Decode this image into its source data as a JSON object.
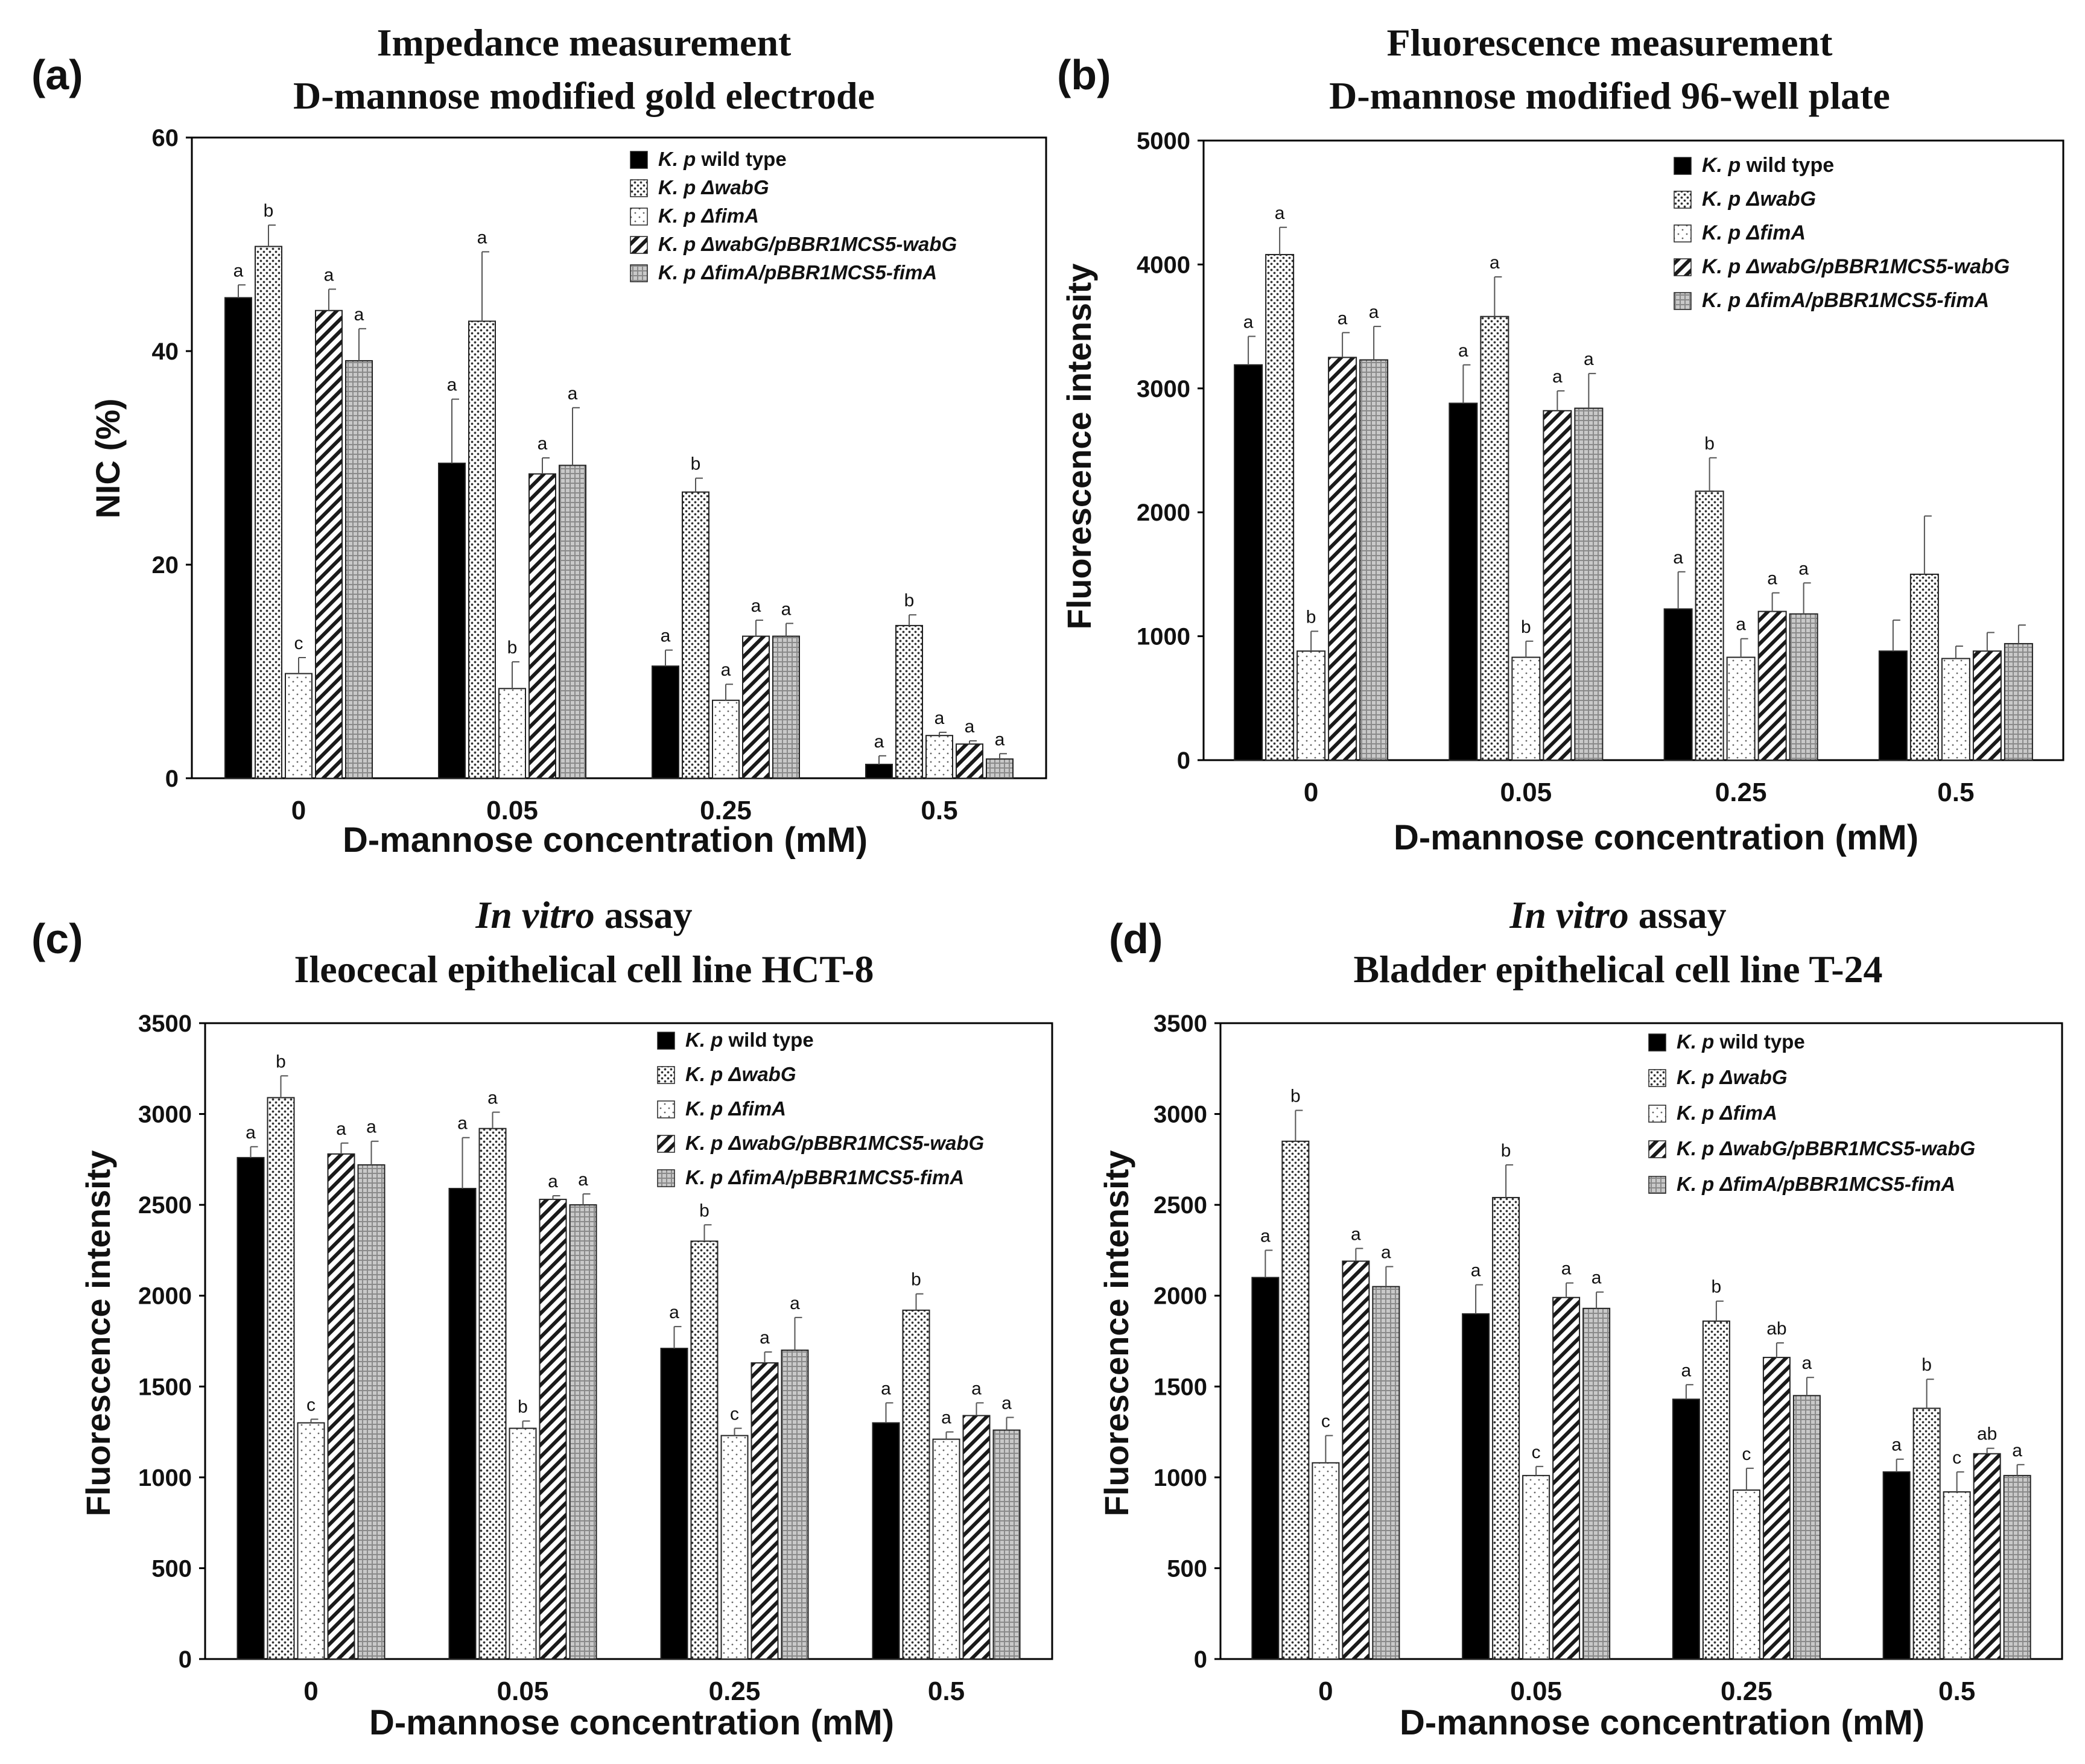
{
  "colors": {
    "wild_type": "#000000",
    "dwabG": "#bdbdbd",
    "dfimA": "#e8e8e8",
    "dwabG_comp": "#1a1a1a",
    "dfimA_comp": "#a8a8a8",
    "error_bar": "#555555"
  },
  "legend": [
    {
      "prefix": "K. p",
      "rest": " wild type",
      "pattern": "solid"
    },
    {
      "prefix": "K. p",
      "rest": " ΔwabG",
      "pattern": "dots-dense"
    },
    {
      "prefix": "K. p",
      "rest": " ΔfimA",
      "pattern": "dots-sparse"
    },
    {
      "prefix": "K. p",
      "rest": " ΔwabG/pBBR1MCS5-wabG",
      "pattern": "diagonal"
    },
    {
      "prefix": "K. p",
      "rest": " ΔfimA/pBBR1MCS5-fimA",
      "pattern": "grid"
    }
  ],
  "chart_data": [
    {
      "panel": "(a)",
      "type": "bar",
      "title_line1": "Impedance measurement",
      "title_line2": "D-mannose modified gold electrode",
      "xlabel": "D-mannose concentration (mM)",
      "ylabel": "NIC (%)",
      "categories": [
        "0",
        "0.05",
        "0.25",
        "0.5"
      ],
      "ylim": [
        0,
        60
      ],
      "yticks": [
        0,
        20,
        40,
        60
      ],
      "series": [
        {
          "name": "K. p wild type",
          "values": [
            45,
            29.5,
            10.5,
            1.3
          ],
          "errors": [
            1.2,
            6,
            1.5,
            0.8
          ],
          "letters": [
            "a",
            "a",
            "a",
            "a"
          ]
        },
        {
          "name": "K. p ΔwabG",
          "values": [
            49.8,
            42.8,
            26.8,
            14.3
          ],
          "errors": [
            2,
            6.5,
            1.3,
            1
          ],
          "letters": [
            "b",
            "a",
            "b",
            "b"
          ]
        },
        {
          "name": "K. p ΔfimA",
          "values": [
            9.8,
            8.4,
            7.3,
            4
          ],
          "errors": [
            1.5,
            2.5,
            1.5,
            0.3
          ],
          "letters": [
            "c",
            "b",
            "a",
            "a"
          ]
        },
        {
          "name": "K. p ΔwabG/pBBR1MCS5-wabG",
          "values": [
            43.8,
            28.5,
            13.3,
            3.2
          ],
          "errors": [
            2,
            1.5,
            1.5,
            0.3
          ],
          "letters": [
            "a",
            "a",
            "a",
            "a"
          ]
        },
        {
          "name": "K. p ΔfimA/pBBR1MCS5-fimA",
          "values": [
            39.1,
            29.3,
            13.3,
            1.8
          ],
          "errors": [
            3,
            5.4,
            1.2,
            0.5
          ],
          "letters": [
            "a",
            "a",
            "a",
            "a"
          ]
        }
      ]
    },
    {
      "panel": "(b)",
      "type": "bar",
      "title_line1": "Fluorescence measurement",
      "title_line2": "D-mannose modified 96-well plate",
      "xlabel": "D-mannose concentration (mM)",
      "ylabel": "Fluorescence intensity",
      "categories": [
        "0",
        "0.05",
        "0.25",
        "0.5"
      ],
      "ylim": [
        0,
        5000
      ],
      "yticks": [
        0,
        1000,
        2000,
        3000,
        4000,
        5000
      ],
      "series": [
        {
          "name": "K. p wild type",
          "values": [
            3190,
            2880,
            1220,
            880
          ],
          "errors": [
            230,
            310,
            300,
            250
          ],
          "letters": [
            "a",
            "a",
            "a",
            ""
          ]
        },
        {
          "name": "K. p ΔwabG",
          "values": [
            4080,
            3580,
            2170,
            1500
          ],
          "errors": [
            220,
            320,
            270,
            470
          ],
          "letters": [
            "a",
            "a",
            "b",
            ""
          ]
        },
        {
          "name": "K. p ΔfimA",
          "values": [
            880,
            830,
            830,
            820
          ],
          "errors": [
            160,
            130,
            150,
            100
          ],
          "letters": [
            "b",
            "b",
            "a",
            ""
          ]
        },
        {
          "name": "K. p ΔwabG/pBBR1MCS5-wabG",
          "values": [
            3250,
            2820,
            1200,
            880
          ],
          "errors": [
            200,
            160,
            150,
            150
          ],
          "letters": [
            "a",
            "a",
            "a",
            ""
          ]
        },
        {
          "name": "K. p ΔfimA/pBBR1MCS5-fimA",
          "values": [
            3230,
            2840,
            1180,
            940
          ],
          "errors": [
            270,
            280,
            250,
            150
          ],
          "letters": [
            "a",
            "a",
            "a",
            ""
          ]
        }
      ]
    },
    {
      "panel": "(c)",
      "type": "bar",
      "title_line1_italic": "In vitro",
      "title_line1_rest": " assay",
      "title_line2": "Ileocecal epithelical cell line HCT-8",
      "xlabel": "D-mannose concentration (mM)",
      "ylabel": "Fluorescence intensity",
      "categories": [
        "0",
        "0.05",
        "0.25",
        "0.5"
      ],
      "ylim": [
        0,
        3500
      ],
      "yticks": [
        0,
        500,
        1000,
        1500,
        2000,
        2500,
        3000,
        3500
      ],
      "series": [
        {
          "name": "K. p wild type",
          "values": [
            2760,
            2590,
            1710,
            1300
          ],
          "errors": [
            60,
            280,
            120,
            110
          ],
          "letters": [
            "a",
            "a",
            "a",
            "a"
          ]
        },
        {
          "name": "K. p ΔwabG",
          "values": [
            3090,
            2920,
            2300,
            1920
          ],
          "errors": [
            120,
            90,
            90,
            90
          ],
          "letters": [
            "b",
            "a",
            "b",
            "b"
          ]
        },
        {
          "name": "K. p ΔfimA",
          "values": [
            1300,
            1270,
            1230,
            1210
          ],
          "errors": [
            20,
            40,
            40,
            40
          ],
          "letters": [
            "c",
            "b",
            "c",
            "a"
          ]
        },
        {
          "name": "K. p ΔwabG/pBBR1MCS5-wabG",
          "values": [
            2780,
            2530,
            1630,
            1340
          ],
          "errors": [
            60,
            20,
            60,
            70
          ],
          "letters": [
            "a",
            "a",
            "a",
            "a"
          ]
        },
        {
          "name": "K. p ΔfimA/pBBR1MCS5-fimA",
          "values": [
            2720,
            2500,
            1700,
            1260
          ],
          "errors": [
            130,
            60,
            180,
            70
          ],
          "letters": [
            "a",
            "a",
            "a",
            "a"
          ]
        }
      ]
    },
    {
      "panel": "(d)",
      "type": "bar",
      "title_line1_italic": "In vitro",
      "title_line1_rest": " assay",
      "title_line2": "Bladder epithelical cell line T-24",
      "xlabel": "D-mannose concentration (mM)",
      "ylabel": "Fluorescence intensity",
      "categories": [
        "0",
        "0.05",
        "0.25",
        "0.5"
      ],
      "ylim": [
        0,
        3500
      ],
      "yticks": [
        0,
        500,
        1000,
        1500,
        2000,
        2500,
        3000,
        3500
      ],
      "series": [
        {
          "name": "K. p wild type",
          "values": [
            2100,
            1900,
            1430,
            1030
          ],
          "errors": [
            150,
            160,
            80,
            70
          ],
          "letters": [
            "a",
            "a",
            "a",
            "a"
          ]
        },
        {
          "name": "K. p ΔwabG",
          "values": [
            2850,
            2540,
            1860,
            1380
          ],
          "errors": [
            170,
            180,
            110,
            160
          ],
          "letters": [
            "b",
            "b",
            "b",
            "b"
          ]
        },
        {
          "name": "K. p ΔfimA",
          "values": [
            1080,
            1010,
            930,
            920
          ],
          "errors": [
            150,
            50,
            120,
            110
          ],
          "letters": [
            "c",
            "c",
            "c",
            "c"
          ]
        },
        {
          "name": "K. p ΔwabG/pBBR1MCS5-wabG",
          "values": [
            2190,
            1990,
            1660,
            1130
          ],
          "errors": [
            70,
            80,
            80,
            30
          ],
          "letters": [
            "a",
            "a",
            "ab",
            "ab"
          ]
        },
        {
          "name": "K. p ΔfimA/pBBR1MCS5-fimA",
          "values": [
            2050,
            1930,
            1450,
            1010
          ],
          "errors": [
            110,
            90,
            100,
            60
          ],
          "letters": [
            "a",
            "a",
            "a",
            "a"
          ]
        }
      ]
    }
  ]
}
